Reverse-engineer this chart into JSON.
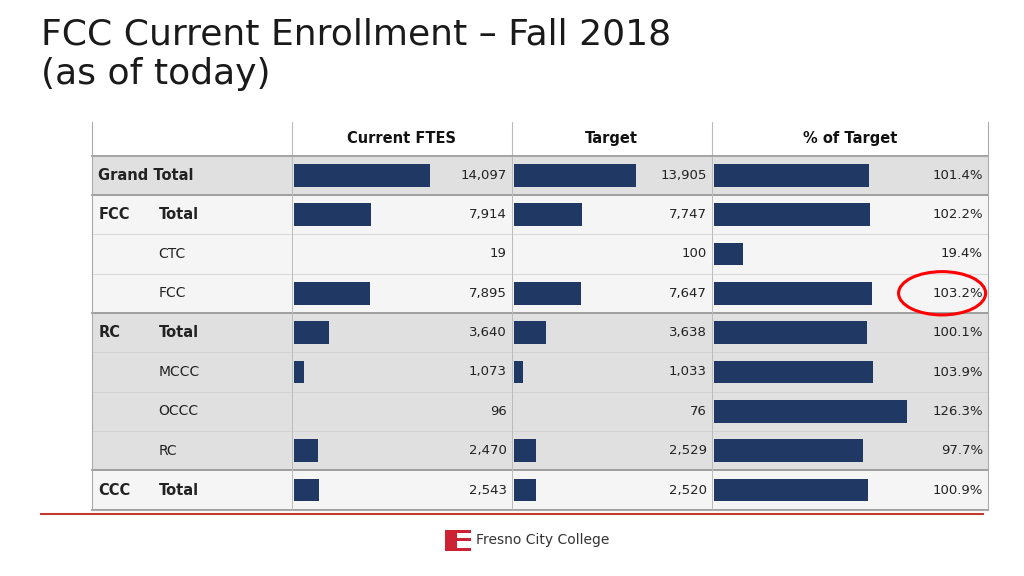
{
  "title": "FCC Current Enrollment – Fall 2018\n(as of today)",
  "title_fontsize": 26,
  "bg_color": "#ffffff",
  "table_header": [
    "Current FTES",
    "Target",
    "% of Target"
  ],
  "rows": [
    {
      "group": "Grand Total",
      "sub": "",
      "current": 14097,
      "target": 13905,
      "pct": 101.4,
      "bold": true,
      "shaded": true
    },
    {
      "group": "FCC",
      "sub": "Total",
      "current": 7914,
      "target": 7747,
      "pct": 102.2,
      "bold": true,
      "shaded": false
    },
    {
      "group": "",
      "sub": "CTC",
      "current": 19,
      "target": 100,
      "pct": 19.4,
      "bold": false,
      "shaded": false
    },
    {
      "group": "",
      "sub": "FCC",
      "current": 7895,
      "target": 7647,
      "pct": 103.2,
      "bold": false,
      "shaded": false,
      "circle": true
    },
    {
      "group": "RC",
      "sub": "Total",
      "current": 3640,
      "target": 3638,
      "pct": 100.1,
      "bold": true,
      "shaded": true
    },
    {
      "group": "",
      "sub": "MCCC",
      "current": 1073,
      "target": 1033,
      "pct": 103.9,
      "bold": false,
      "shaded": true
    },
    {
      "group": "",
      "sub": "OCCC",
      "current": 96,
      "target": 76,
      "pct": 126.3,
      "bold": false,
      "shaded": true
    },
    {
      "group": "",
      "sub": "RC",
      "current": 2470,
      "target": 2529,
      "pct": 97.7,
      "bold": false,
      "shaded": true
    },
    {
      "group": "CCC",
      "sub": "Total",
      "current": 2543,
      "target": 2520,
      "pct": 100.9,
      "bold": true,
      "shaded": false
    }
  ],
  "bar_color": "#1F3864",
  "bar_max": 14097,
  "pct_max": 130.0,
  "row_shaded_color": "#e0e0e0",
  "row_white_color": "#f5f5f5",
  "header_text_color": "#111111",
  "text_color": "#222222",
  "footer_line_color": "#c0392b",
  "footer_text": "Fresno City College",
  "thick_border_rows": [
    0,
    4
  ],
  "col_sep_color": "#bbbbbb"
}
